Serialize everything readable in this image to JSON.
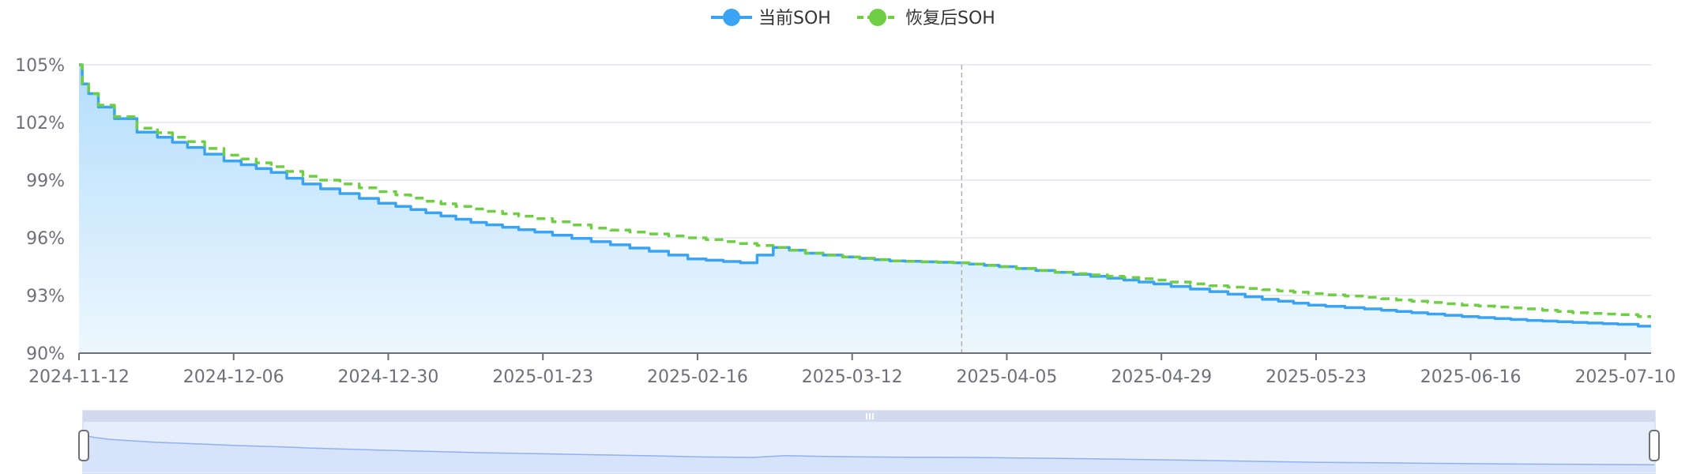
{
  "chart_data": {
    "type": "line",
    "legend": {
      "position": "top-center",
      "items": [
        {
          "label": "当前SOH",
          "color": "#3ba3f3"
        },
        {
          "label": "恢复后SOH",
          "color": "#6fce45"
        }
      ]
    },
    "y_axis": {
      "min": 90,
      "max": 105,
      "ticks": [
        90,
        93,
        96,
        99,
        102,
        105
      ],
      "tick_labels": [
        "90%",
        "93%",
        "96%",
        "99%",
        "102%",
        "105%"
      ]
    },
    "x_axis": {
      "start": "2024-11-12",
      "end": "2025-07-14",
      "tick_labels": [
        "2024-11-12",
        "2024-12-06",
        "2024-12-30",
        "2025-01-23",
        "2025-02-16",
        "2025-03-12",
        "2025-04-05",
        "2025-04-29",
        "2025-05-23",
        "2025-06-16",
        "2025-07-10"
      ]
    },
    "grid": true,
    "crosshair_date": "2025-03-29",
    "series": [
      {
        "name": "当前SOH",
        "area": true,
        "x": [
          "2024-11-12",
          "2024-11-13",
          "2024-11-14",
          "2024-11-16",
          "2024-11-19",
          "2024-11-23",
          "2024-11-30",
          "2024-12-06",
          "2024-12-13",
          "2024-12-18",
          "2024-12-24",
          "2024-12-30",
          "2025-01-06",
          "2025-01-13",
          "2025-01-23",
          "2025-02-01",
          "2025-02-10",
          "2025-02-16",
          "2025-02-24",
          "2025-03-01",
          "2025-03-06",
          "2025-03-12",
          "2025-03-19",
          "2025-03-29",
          "2025-04-05",
          "2025-04-14",
          "2025-04-22",
          "2025-04-29",
          "2025-05-08",
          "2025-05-16",
          "2025-05-23",
          "2025-06-01",
          "2025-06-08",
          "2025-06-16",
          "2025-06-26",
          "2025-07-03",
          "2025-07-10",
          "2025-07-14"
        ],
        "values": [
          105.0,
          104.0,
          103.5,
          102.8,
          102.2,
          101.5,
          100.7,
          100.0,
          99.4,
          98.8,
          98.3,
          97.8,
          97.3,
          96.8,
          96.3,
          95.8,
          95.3,
          94.9,
          94.7,
          95.5,
          95.2,
          95.0,
          94.8,
          94.7,
          94.5,
          94.2,
          93.9,
          93.6,
          93.2,
          92.8,
          92.5,
          92.3,
          92.1,
          91.9,
          91.7,
          91.6,
          91.5,
          91.4
        ]
      },
      {
        "name": "恢复后SOH",
        "area": false,
        "x": [
          "2024-11-12",
          "2024-11-13",
          "2024-11-14",
          "2024-11-16",
          "2024-11-19",
          "2024-11-23",
          "2024-11-30",
          "2024-12-06",
          "2024-12-13",
          "2024-12-18",
          "2024-12-24",
          "2024-12-30",
          "2025-01-06",
          "2025-01-13",
          "2025-01-23",
          "2025-02-01",
          "2025-02-10",
          "2025-02-16",
          "2025-02-24",
          "2025-03-01",
          "2025-03-06",
          "2025-03-12",
          "2025-03-19",
          "2025-03-29",
          "2025-04-05",
          "2025-04-14",
          "2025-04-22",
          "2025-04-29",
          "2025-05-08",
          "2025-05-16",
          "2025-05-23",
          "2025-06-01",
          "2025-06-08",
          "2025-06-16",
          "2025-06-26",
          "2025-07-03",
          "2025-07-10",
          "2025-07-14"
        ],
        "values": [
          105.0,
          104.0,
          103.5,
          102.9,
          102.3,
          101.7,
          101.0,
          100.3,
          99.7,
          99.2,
          98.8,
          98.4,
          97.9,
          97.5,
          97.0,
          96.5,
          96.2,
          96.0,
          95.7,
          95.5,
          95.2,
          95.0,
          94.8,
          94.7,
          94.5,
          94.2,
          94.0,
          93.8,
          93.5,
          93.3,
          93.1,
          92.9,
          92.7,
          92.5,
          92.3,
          92.1,
          92.0,
          91.9
        ]
      }
    ]
  },
  "style": {
    "current_color": "#3ba3f3",
    "restored_color": "#6fce45",
    "area_top_color": "#b3defc",
    "area_bottom_color": "#eef7fe",
    "grid_color": "#e0e6f1",
    "axis_color": "#6e7079",
    "crosshair_color": "#b0b0b0",
    "slider_fill_color": "#e6eefc",
    "slider_border_color": "#d2dbee",
    "slider_area_color": "#d7e3fb",
    "slider_line_color": "#8fb0f7"
  }
}
